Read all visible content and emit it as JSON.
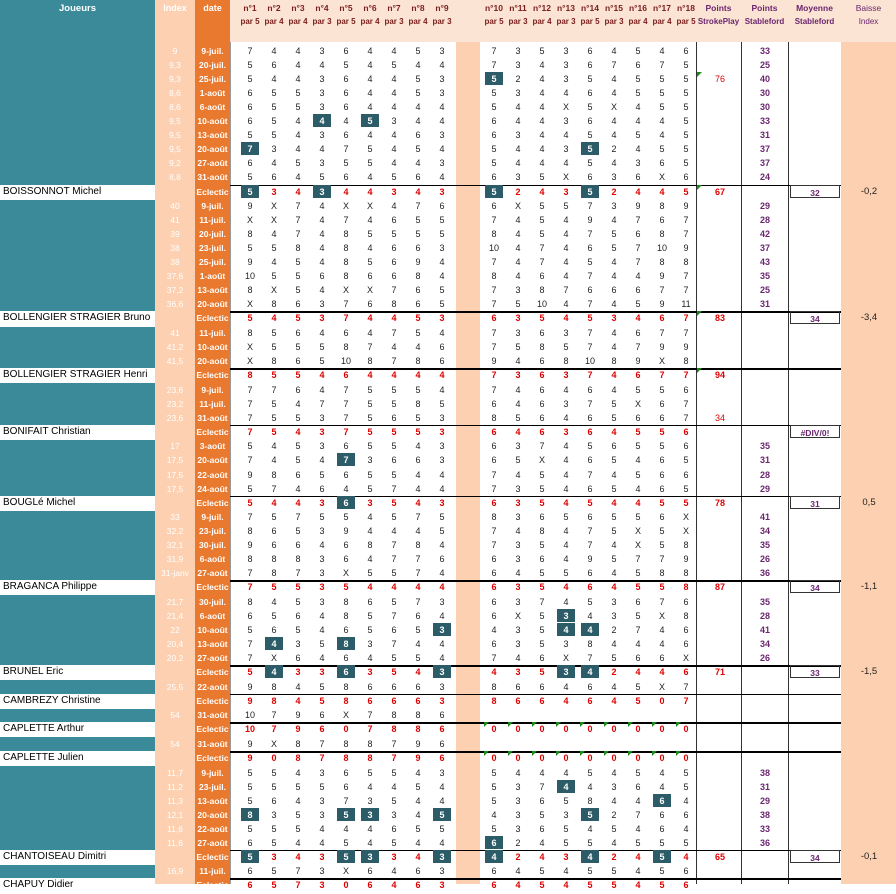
{
  "headers": {
    "player": "Joueurs",
    "index": "Index",
    "date": "date",
    "holes": [
      "n°1",
      "n°2",
      "n°3",
      "n°4",
      "n°5",
      "n°6",
      "n°7",
      "n°8",
      "n°9",
      "n°10",
      "n°11",
      "n°12",
      "n°13",
      "n°14",
      "n°15",
      "n°16",
      "n°17",
      "n°18"
    ],
    "pars": [
      "par 5",
      "par 4",
      "par 4",
      "par 3",
      "par 5",
      "par 4",
      "par 3",
      "par 4",
      "par 3",
      "par 5",
      "par 3",
      "par 4",
      "par 3",
      "par 5",
      "par 3",
      "par 4",
      "par 4",
      "par 5"
    ],
    "points_stroke": [
      "Points",
      "StrokePlay"
    ],
    "points_stable": [
      "Points",
      "Stableford"
    ],
    "moyenne": [
      "Moyenne",
      "Stableford"
    ],
    "baisse": [
      "Baisse",
      "Index"
    ]
  },
  "colors": {
    "teal": "#3b8a9a",
    "orange_light": "#fcd0b0",
    "orange_dark": "#e8792f",
    "highlight": "#2b5c68"
  },
  "players": [
    {
      "name": "BOISSONNOT Michel",
      "moyenne": "32",
      "baisse": "-0,2",
      "ecl_points": "67",
      "rounds": [
        [
          "9",
          "9-juil.",
          "7 4 4 3 6 4 4 5 3",
          "7 3 5 3 6 4 5 4 6",
          "",
          "33"
        ],
        [
          "9,3",
          "20-juil.",
          "5 6 4 4 5 4 5 4 4",
          "7 3 4 3 6 7 6 7 5",
          "",
          "25"
        ],
        [
          "9,3",
          "25-juil.",
          "5 4 4 3 6 4 4 5 3",
          "5 2 4 3 5 4 5 5 5",
          "76",
          "40"
        ],
        [
          "8,6",
          "1-août",
          "6 5 5 3 6 4 4 5 3",
          "5 3 4 4 6 4 5 5 5",
          "",
          "30"
        ],
        [
          "8,6",
          "6-août",
          "6 5 5 3 6 4 4 4 4",
          "5 4 4 X 5 X 4 5 5",
          "",
          "30"
        ],
        [
          "9,5",
          "10-août",
          "6 5 4 4 4 5 3 4 4",
          "6 4 4 3 6 4 4 4 5",
          "",
          "33"
        ],
        [
          "9,5",
          "13-août",
          "5 5 4 3 6 4 4 6 3",
          "6 3 4 4 5 4 5 4 5",
          "",
          "31"
        ],
        [
          "9,5",
          "20-août",
          "7 3 4 4 7 5 4 5 4",
          "5 4 4 3 5 2 4 5 5",
          "",
          "37"
        ],
        [
          "9,2",
          "27-août",
          "6 4 5 3 5 5 4 4 3",
          "5 4 4 4 5 4 3 6 5",
          "",
          "37"
        ],
        [
          "8,8",
          "31-août",
          "5 6 4 5 6 4 5 6 4",
          "6 3 5 X 6 3 6 X 6",
          "",
          "24"
        ]
      ],
      "eclectic": "5 3 4 3 4 4 3 4 3|5 2 4 3 5 2 4 4 5"
    },
    {
      "name": "BOLLENGIER STRAGIER Bruno",
      "moyenne": "34",
      "baisse": "-3,4",
      "ecl_points": "83",
      "rounds": [
        [
          "40",
          "9-juil.",
          "9 X 7 4 X X 4 7 6",
          "6 X 5 5 7 3 9 8 9",
          "",
          "29"
        ],
        [
          "41",
          "11-juil.",
          "X X 7 4 7 4 6 5 5",
          "7 4 5 4 9 4 7 6 7",
          "",
          "28"
        ],
        [
          "39",
          "20-juil.",
          "8 4 7 4 8 5 5 5 5",
          "8 4 5 4 7 5 6 8 7",
          "",
          "42"
        ],
        [
          "38",
          "23-juil.",
          "5 5 8 4 8 4 6 6 3",
          "10 4 7 4 6 5 7 10 9",
          "",
          "37"
        ],
        [
          "38",
          "25-juil.",
          "9 4 5 4 8 5 6 9 4",
          "7 4 7 4 5 4 7 8 8",
          "",
          "43"
        ],
        [
          "37,6",
          "1-août",
          "10 5 5 6 8 6 6 8 4",
          "8 4 6 4 7 4 4 9 7",
          "",
          "35"
        ],
        [
          "37,2",
          "13-août",
          "8 X 5 4 X X 7 6 5",
          "7 3 8 7 6 6 6 7 7",
          "",
          "25"
        ],
        [
          "36,6",
          "20-août",
          "X 8 6 3 7 6 8 6 5",
          "7 5 10 4 7 4 5 9 11",
          "",
          "31"
        ]
      ],
      "eclectic": "5 4 5 3 7 4 4 5 3|6 3 5 4 5 3 4 6 7"
    },
    {
      "name": "BOLLENGIER STRAGIER Henri",
      "moyenne": "",
      "baisse": "",
      "ecl_points": "94",
      "rounds": [
        [
          "41",
          "11-juil.",
          "8 5 6 4 6 4 7 5 4",
          "7 3 6 3 7 4 6 7 7",
          "",
          ""
        ],
        [
          "41,2",
          "10-août",
          "X 5 5 5 8 7 4 4 6",
          "7 5 8 5 7 4 7 9 9",
          "",
          ""
        ],
        [
          "41,5",
          "20-août",
          "X 8 6 5 10 8 7 8 6",
          "9 4 6 8 10 8 9 X 8",
          "",
          ""
        ]
      ],
      "eclectic": "8 5 5 4 6 4 4 4 4|7 3 6 3 7 4 6 7 7"
    },
    {
      "name": "BONIFAIT Christian",
      "moyenne": "#DIV/0!",
      "baisse": "",
      "ecl_points": "",
      "rounds": [
        [
          "23,6",
          "9-juil.",
          "7 7 6 4 7 5 5 5 4",
          "7 4 6 4 6 4 5 5 6",
          "",
          ""
        ],
        [
          "23,2",
          "11-juil.",
          "7 5 4 7 7 5 5 8 5",
          "6 4 6 3 7 5 X 6 7",
          "",
          ""
        ],
        [
          "23,6",
          "31-août",
          "7 5 5 3 7 5 6 5 3",
          "8 5 6 4 6 5 6 6 7",
          "34",
          ""
        ]
      ],
      "eclectic": "7 5 4 3 7 5 5 5 3|6 4 6 3 6 4 5 5 6"
    },
    {
      "name": "BOUGLé Michel",
      "moyenne": "31",
      "baisse": "0,5",
      "ecl_points": "78",
      "rounds": [
        [
          "17",
          "3-août",
          "5 4 5 3 6 5 5 4 3",
          "6 3 7 4 5 6 5 5 6",
          "",
          "35"
        ],
        [
          "17,5",
          "20-août",
          "7 4 5 4 7 3 6 6 3",
          "6 5 X 4 6 5 4 6 5",
          "",
          "31"
        ],
        [
          "17,5",
          "22-août",
          "9 8 6 5 6 5 5 4 4",
          "7 4 5 4 7 4 5 6 6",
          "",
          "28"
        ],
        [
          "17,5",
          "24-août",
          "5 7 4 6 4 5 7 4 4",
          "7 3 5 4 6 5 4 6 5",
          "",
          "29"
        ]
      ],
      "eclectic": "5 4 4 3 6 3 5 4 3|6 3 5 4 5 4 4 5 5"
    },
    {
      "name": "BRAGANCA Philippe",
      "moyenne": "34",
      "baisse": "-1,1",
      "ecl_points": "87",
      "rounds": [
        [
          "33",
          "9-juil.",
          "7 5 7 5 5 4 5 7 5",
          "8 3 6 5 6 5 5 6 X",
          "",
          "41"
        ],
        [
          "32,2",
          "23-juil.",
          "8 6 5 3 9 4 4 4 5",
          "7 4 8 4 7 5 X 5 X",
          "",
          "34"
        ],
        [
          "32,1",
          "30-juil.",
          "9 6 6 4 6 8 7 8 4",
          "7 3 5 4 7 4 X 5 8",
          "",
          "35"
        ],
        [
          "31,9",
          "6-août",
          "8 8 8 3 6 4 7 7 6",
          "6 3 6 4 9 5 7 7 9",
          "",
          "26"
        ],
        [
          "31-janv",
          "27-août",
          "7 8 7 3 X 5 5 7 4",
          "6 4 5 5 6 4 5 8 8",
          "",
          "36"
        ]
      ],
      "eclectic": "7 5 5 3 5 4 4 4 4|6 3 5 4 6 4 5 5 8"
    },
    {
      "name": "BRUNEL Eric",
      "moyenne": "33",
      "baisse": "-1,5",
      "ecl_points": "71",
      "rounds": [
        [
          "21,7",
          "30-juil.",
          "8 4 5 3 8 6 5 7 3",
          "6 3 7 4 5 3 6 7 6",
          "",
          "35"
        ],
        [
          "21,4",
          "6-août",
          "6 5 6 4 8 5 7 6 4",
          "6 X 5 3 4 3 5 X 8",
          "",
          "28"
        ],
        [
          "22",
          "10-août",
          "5 6 5 4 6 5 6 5 3",
          "4 3 5 4 4 2 7 4 6",
          "",
          "41"
        ],
        [
          "20,4",
          "13-août",
          "7 4 3 5 8 3 7 4 4",
          "6 3 5 3 8 4 4 4 6",
          "",
          "34"
        ],
        [
          "20,2",
          "27-août",
          "7 X 6 4 6 4 5 5 4",
          "7 4 6 X 7 5 6 6 X",
          "",
          "26"
        ]
      ],
      "eclectic": "5 4 3 3 6 3 5 4 3|4 3 5 3 4 2 4 4 6"
    },
    {
      "name": "CAMBREZY Christine",
      "moyenne": "",
      "baisse": "",
      "ecl_points": "",
      "rounds": [
        [
          "25,5",
          "22-août",
          "9 8 4 5 8 6 6 6 3",
          "8 6 6 4 6 4 5 X 7",
          "",
          " "
        ]
      ],
      "eclectic": "9 8 4 5 8 6 6 6 3|8 6 6 4 6 4 5 0 7"
    },
    {
      "name": "CAPLETTE Arthur",
      "moyenne": "",
      "baisse": "",
      "ecl_points": "",
      "rounds": [
        [
          "54",
          "31-août",
          "10 7 9 6 X 7 8 8 6",
          "         ",
          "",
          ""
        ]
      ],
      "eclectic": "10 7 9 6 0 7 8 8 6|0 0 0 0 0 0 0 0 0"
    },
    {
      "name": "CAPLETTE Julien",
      "moyenne": "",
      "baisse": "",
      "ecl_points": "",
      "rounds": [
        [
          "54",
          "31-août",
          "9 X 8 7 8 8 7 9 6",
          "         ",
          "",
          ""
        ]
      ],
      "eclectic": "9 0 8 7 8 8 7 9 6|0 0 0 0 0 0 0 0 0"
    },
    {
      "name": "CHANTOISEAU Dimitri",
      "moyenne": "34",
      "baisse": "-0,1",
      "ecl_points": "65",
      "rounds": [
        [
          "11,7",
          "9-juil.",
          "5 5 4 3 6 5 5 4 3",
          "5 4 4 4 5 4 5 4 5",
          "",
          "38"
        ],
        [
          "11,2",
          "23-juil.",
          "5 5 5 5 6 4 4 5 4",
          "5 3 7 4 4 3 6 4 5",
          "",
          "31"
        ],
        [
          "11,3",
          "13-août",
          "5 6 4 3 7 3 5 4 4",
          "5 3 6 5 8 4 4 6 4",
          "",
          "29"
        ],
        [
          "12,1",
          "20-août",
          "8 3 5 3 5 3 3 4 5",
          "4 3 5 3 5 2 7 6 6",
          "",
          "38"
        ],
        [
          "11,6",
          "22-août",
          "5 5 5 4 4 4 6 5 5",
          "5 3 6 5 4 5 4 6 4",
          "",
          "33"
        ],
        [
          "11,6",
          "27-août",
          "6 5 4 4 5 4 5 4 4",
          "6 2 4 5 5 4 5 5 5",
          "",
          "36"
        ]
      ],
      "eclectic": "5 3 4 3 5 3 3 4 3|4 2 4 3 4 2 4 5 4"
    },
    {
      "name": "CHAPUY Didier",
      "moyenne": "",
      "baisse": "",
      "ecl_points": "",
      "rounds": [
        [
          "16,9",
          "11-juil.",
          "6 5 7 3 X 6 4 6 3",
          "6 4 5 4 5 5 4 5 6",
          "",
          ""
        ]
      ],
      "eclectic": "6 5 7 3 0 6 4 6 3|6 4 5 4 5 5 4 5 6"
    }
  ]
}
